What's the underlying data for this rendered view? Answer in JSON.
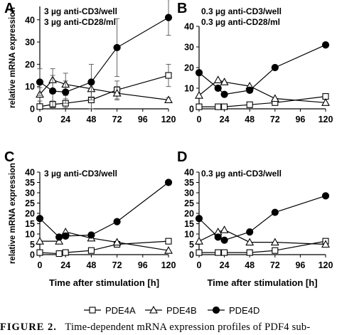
{
  "caption": {
    "label": "FIGURE 2.",
    "text": "Time-dependent mRNA expression profiles of PDF4 sub-"
  },
  "legend": [
    {
      "series": "PDE4A",
      "label": "PDE4A",
      "marker": "square"
    },
    {
      "series": "PDE4B",
      "label": "PDE4B",
      "marker": "triangle"
    },
    {
      "series": "PDE4D",
      "label": "PDE4D",
      "marker": "circle"
    }
  ],
  "chart_data": [
    {
      "panel_letter": "A",
      "type": "line",
      "annotation": [
        "3 µg anti-CD3/well",
        "3 µg anti-CD28/ml"
      ],
      "xlabel": "",
      "ylabel": "relative mRNA expression",
      "x_ticks": [
        "0",
        "24",
        "48",
        "72",
        "96",
        "120"
      ],
      "y_ticks": [
        "0",
        "10",
        "20",
        "30",
        "40"
      ],
      "xlim": [
        0,
        120
      ],
      "ylim": [
        0,
        46
      ],
      "series": [
        {
          "name": "PDE4A",
          "x": [
            0,
            12,
            24,
            48,
            72,
            120
          ],
          "y": [
            1,
            2,
            2.5,
            4,
            8.5,
            15
          ],
          "err": [
            0,
            1.5,
            2,
            4,
            4,
            5
          ]
        },
        {
          "name": "PDE4B",
          "x": [
            0,
            12,
            24,
            48,
            72,
            120
          ],
          "y": [
            6.5,
            13,
            11,
            9,
            7,
            4
          ],
          "err": [
            3,
            5,
            5,
            4,
            3,
            1
          ]
        },
        {
          "name": "PDE4D",
          "x": [
            0,
            12,
            24,
            48,
            72,
            120
          ],
          "y": [
            12,
            8,
            7.5,
            12,
            27.5,
            41
          ],
          "err": [
            6,
            7,
            5,
            8,
            13,
            8
          ]
        }
      ]
    },
    {
      "panel_letter": "B",
      "type": "line",
      "annotation": [
        "0.3 µg anti-CD3/well",
        "0.3 µg anti-CD28/ml"
      ],
      "xlabel": "",
      "ylabel": "",
      "x_ticks": [
        "0",
        "24",
        "48",
        "72",
        "96",
        "120"
      ],
      "y_ticks": [
        "0",
        "10",
        "20",
        "30",
        "40"
      ],
      "xlim": [
        0,
        120
      ],
      "ylim": [
        0,
        40
      ],
      "series": [
        {
          "name": "PDE4A",
          "x": [
            0,
            18,
            24,
            48,
            72,
            120
          ],
          "y": [
            1,
            1,
            1,
            2,
            3,
            6
          ]
        },
        {
          "name": "PDE4B",
          "x": [
            0,
            18,
            24,
            48,
            72,
            120
          ],
          "y": [
            6.5,
            14,
            13,
            11,
            5,
            3
          ]
        },
        {
          "name": "PDE4D",
          "x": [
            0,
            18,
            24,
            48,
            72,
            120
          ],
          "y": [
            17.5,
            10,
            7,
            9,
            20,
            31
          ]
        }
      ]
    },
    {
      "panel_letter": "C",
      "type": "line",
      "annotation": [
        "3 µg anti-CD3/well"
      ],
      "xlabel": "Time after stimulation [h]",
      "ylabel": "relative mRNA expression",
      "x_ticks": [
        "0",
        "24",
        "48",
        "72",
        "96",
        "120"
      ],
      "y_ticks": [
        "0",
        "5",
        "10",
        "15",
        "20",
        "25",
        "30",
        "35",
        "40"
      ],
      "xlim": [
        0,
        120
      ],
      "ylim": [
        0,
        40
      ],
      "series": [
        {
          "name": "PDE4A",
          "x": [
            0,
            18,
            24,
            48,
            72,
            120
          ],
          "y": [
            1,
            0.5,
            1,
            2,
            5,
            6.5
          ]
        },
        {
          "name": "PDE4B",
          "x": [
            0,
            18,
            24,
            48,
            72,
            120
          ],
          "y": [
            6.5,
            6.5,
            11,
            8,
            6,
            2
          ]
        },
        {
          "name": "PDE4D",
          "x": [
            0,
            18,
            24,
            48,
            72,
            120
          ],
          "y": [
            17.5,
            8.5,
            9,
            9.5,
            16,
            35
          ]
        }
      ]
    },
    {
      "panel_letter": "D",
      "type": "line",
      "annotation": [
        "0.3 µg anti-CD3/well"
      ],
      "xlabel": "Time after stimulation [h]",
      "ylabel": "",
      "x_ticks": [
        "0",
        "24",
        "48",
        "72",
        "96",
        "120"
      ],
      "y_ticks": [
        "0",
        "5",
        "10",
        "15",
        "20",
        "25",
        "30",
        "35",
        "40"
      ],
      "xlim": [
        0,
        120
      ],
      "ylim": [
        0,
        40
      ],
      "series": [
        {
          "name": "PDE4A",
          "x": [
            0,
            18,
            24,
            48,
            72,
            120
          ],
          "y": [
            1,
            1,
            1,
            1,
            2,
            6.5
          ]
        },
        {
          "name": "PDE4B",
          "x": [
            0,
            18,
            24,
            48,
            72,
            120
          ],
          "y": [
            6.5,
            11,
            12,
            6,
            6,
            5
          ]
        },
        {
          "name": "PDE4D",
          "x": [
            0,
            18,
            24,
            48,
            72,
            120
          ],
          "y": [
            17.5,
            8.5,
            7,
            11,
            20.5,
            28.5
          ]
        }
      ]
    }
  ]
}
